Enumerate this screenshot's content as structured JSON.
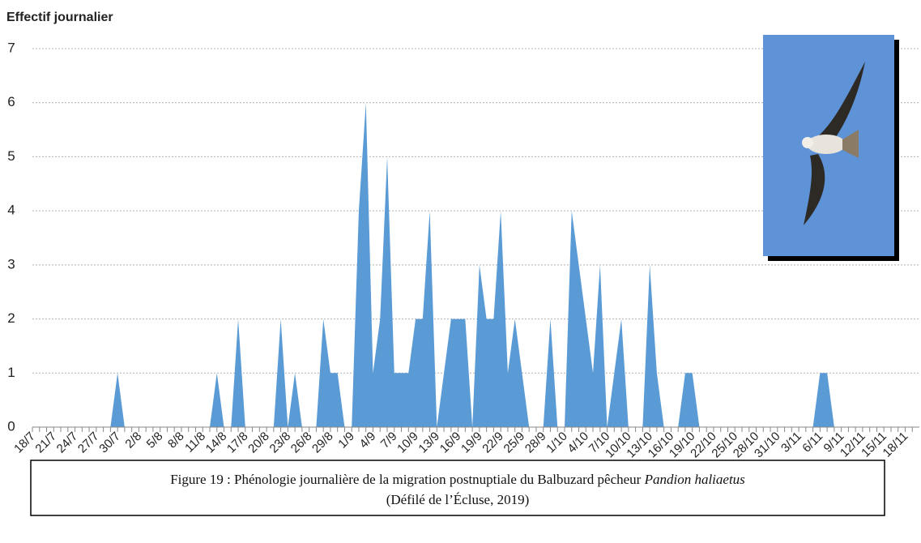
{
  "chart_data": {
    "type": "area",
    "y_label": "Effectif journalier",
    "categories": [
      "18/7",
      null,
      null,
      "21/7",
      null,
      null,
      "24/7",
      null,
      null,
      "27/7",
      null,
      null,
      "30/7",
      null,
      null,
      "2/8",
      null,
      null,
      "5/8",
      null,
      null,
      "8/8",
      null,
      null,
      "11/8",
      null,
      null,
      "14/8",
      null,
      null,
      "17/8",
      null,
      null,
      "20/8",
      null,
      null,
      "23/8",
      null,
      null,
      "26/8",
      null,
      null,
      "29/8",
      null,
      null,
      "1/9",
      null,
      null,
      "4/9",
      null,
      null,
      "7/9",
      null,
      null,
      "10/9",
      null,
      null,
      "13/9",
      null,
      null,
      "16/9",
      null,
      null,
      "19/9",
      null,
      null,
      "22/9",
      null,
      null,
      "25/9",
      null,
      null,
      "28/9",
      null,
      null,
      "1/10",
      null,
      null,
      "4/10",
      null,
      null,
      "7/10",
      null,
      null,
      "10/10",
      null,
      null,
      "13/10",
      null,
      null,
      "16/10",
      null,
      null,
      "19/10",
      null,
      null,
      "22/10",
      null,
      null,
      "25/10",
      null,
      null,
      "28/10",
      null,
      null,
      "31/10",
      null,
      null,
      "3/11",
      null,
      null,
      "6/11",
      null,
      null,
      "9/11",
      null,
      null,
      "12/11",
      null,
      null,
      "15/11",
      null,
      null,
      "18/11",
      null
    ],
    "values": [
      0,
      0,
      0,
      0,
      0,
      0,
      0,
      0,
      0,
      0,
      0,
      0,
      1,
      0,
      0,
      0,
      0,
      0,
      0,
      0,
      0,
      0,
      0,
      0,
      0,
      0,
      1,
      0,
      0,
      2,
      0,
      0,
      0,
      0,
      0,
      2,
      0,
      1,
      0,
      0,
      0,
      2,
      1,
      1,
      0,
      0,
      4,
      6,
      1,
      2,
      5,
      1,
      1,
      1,
      2,
      2,
      4,
      0,
      1,
      2,
      2,
      2,
      0,
      3,
      2,
      2,
      4,
      1,
      2,
      1,
      0,
      0,
      0,
      2,
      0,
      0,
      4,
      3,
      2,
      1,
      3,
      0,
      1,
      2,
      0,
      0,
      0,
      3,
      1,
      0,
      0,
      0,
      1,
      1,
      0,
      0,
      0,
      0,
      0,
      0,
      0,
      0,
      0,
      0,
      0,
      0,
      0,
      0,
      0,
      0,
      0,
      1,
      1,
      0,
      0,
      0,
      0,
      0,
      0,
      0,
      0,
      0,
      0,
      0,
      0
    ],
    "color": "#5b9bd5",
    "ylim": [
      0,
      7
    ],
    "yticks": [
      0,
      1,
      2,
      3,
      4,
      5,
      6,
      7
    ],
    "grid": true
  },
  "caption": {
    "text": "Figure 19 : Phénologie journalière de la migration postnuptiale du Balbuzard pêcheur ",
    "species": "Pandion haliaetus",
    "source": "(Défilé de l’Écluse, 2019)"
  }
}
